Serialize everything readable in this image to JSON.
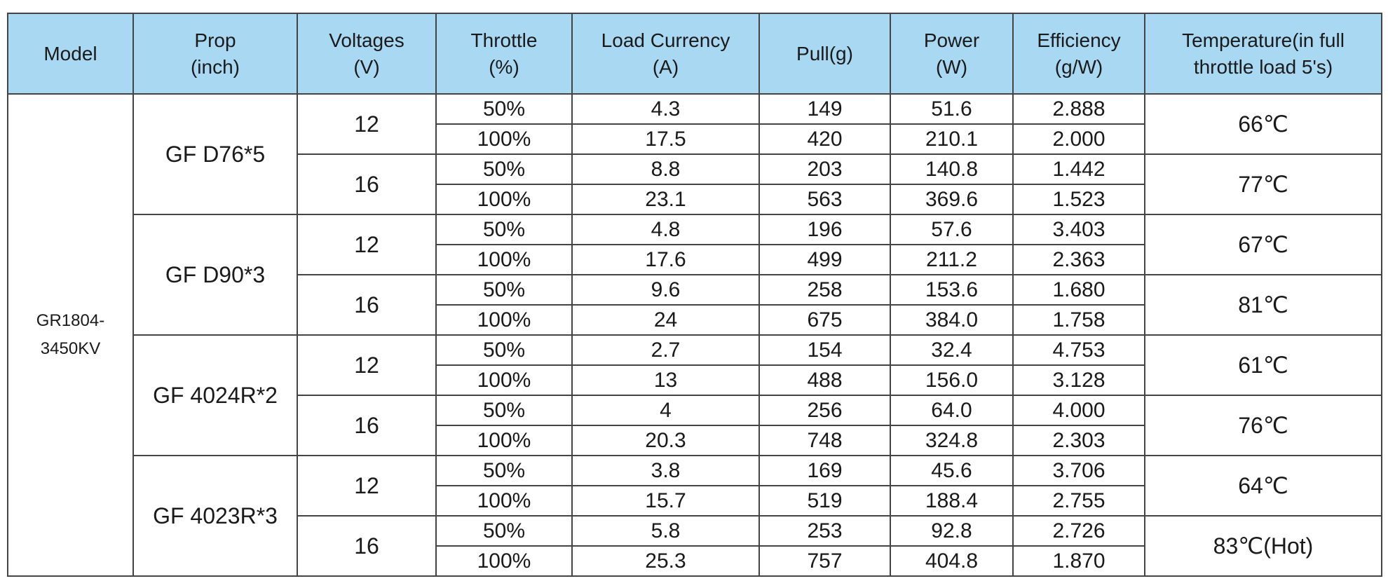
{
  "header": [
    "Model",
    "Prop\n(inch)",
    "Voltages\n(V)",
    "Throttle\n(%)",
    "Load Currency\n(A)",
    "Pull(g)",
    "Power\n(W)",
    "Efficiency\n(g/W)",
    "Temperature(in full\nthrottle load 5's)"
  ],
  "model": "GR1804-3450KV",
  "props": [
    {
      "name": "GF D76*5",
      "groups": [
        {
          "voltage": 12,
          "temperature": "66℃",
          "rows": [
            [
              "50%",
              4.3,
              149,
              "51.6",
              "2.888"
            ],
            [
              "100%",
              17.5,
              420,
              "210.1",
              "2.000"
            ]
          ]
        },
        {
          "voltage": 16,
          "temperature": "77℃",
          "rows": [
            [
              "50%",
              8.8,
              203,
              "140.8",
              "1.442"
            ],
            [
              "100%",
              23.1,
              563,
              "369.6",
              "1.523"
            ]
          ]
        }
      ]
    },
    {
      "name": "GF D90*3",
      "groups": [
        {
          "voltage": 12,
          "temperature": "67℃",
          "rows": [
            [
              "50%",
              4.8,
              196,
              "57.6",
              "3.403"
            ],
            [
              "100%",
              17.6,
              499,
              "211.2",
              "2.363"
            ]
          ]
        },
        {
          "voltage": 16,
          "temperature": "81℃",
          "rows": [
            [
              "50%",
              9.6,
              258,
              "153.6",
              "1.680"
            ],
            [
              "100%",
              24,
              675,
              "384.0",
              "1.758"
            ]
          ]
        }
      ]
    },
    {
      "name": "GF 4024R*2",
      "groups": [
        {
          "voltage": 12,
          "temperature": "61℃",
          "rows": [
            [
              "50%",
              2.7,
              154,
              "32.4",
              "4.753"
            ],
            [
              "100%",
              13,
              488,
              "156.0",
              "3.128"
            ]
          ]
        },
        {
          "voltage": 16,
          "temperature": "76℃",
          "rows": [
            [
              "50%",
              4,
              256,
              "64.0",
              "4.000"
            ],
            [
              "100%",
              20.3,
              748,
              "324.8",
              "2.303"
            ]
          ]
        }
      ]
    },
    {
      "name": "GF 4023R*3",
      "groups": [
        {
          "voltage": 12,
          "temperature": "64℃",
          "rows": [
            [
              "50%",
              3.8,
              169,
              "45.6",
              "3.706"
            ],
            [
              "100%",
              15.7,
              519,
              "188.4",
              "2.755"
            ]
          ]
        },
        {
          "voltage": 16,
          "temperature": "83℃(Hot)",
          "rows": [
            [
              "50%",
              5.8,
              253,
              "92.8",
              "2.726"
            ],
            [
              "100%",
              25.3,
              757,
              "404.8",
              "1.870"
            ]
          ]
        }
      ]
    }
  ]
}
